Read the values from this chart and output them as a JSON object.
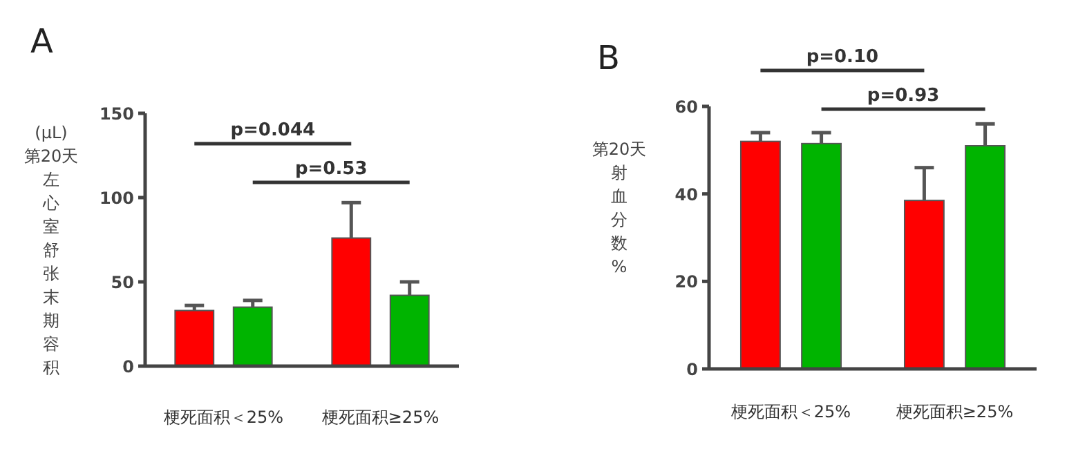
{
  "chart_data": [
    {
      "type": "bar",
      "title": "A",
      "ylabel": "(μL)第20天左心室舒张末期容积",
      "categories": [
        "梗死面积＜25%",
        "梗死面积≥25%"
      ],
      "series": [
        {
          "color": "#ff0000",
          "values": [
            33,
            76
          ],
          "errors": [
            [
              33,
              36
            ],
            [
              76,
              97
            ]
          ]
        },
        {
          "color": "#00b400",
          "values": [
            35,
            42
          ],
          "errors": [
            [
              35,
              39
            ],
            [
              42,
              50
            ]
          ]
        }
      ],
      "ylim": [
        0,
        150
      ],
      "yticks": [
        0,
        50,
        100,
        150
      ],
      "grid": false,
      "annotations": [
        "p=0.044",
        "p=0.53"
      ]
    },
    {
      "type": "bar",
      "title": "B",
      "ylabel": "第20天射血分数%",
      "categories": [
        "梗死面积＜25%",
        "梗死面积≥25%"
      ],
      "series": [
        {
          "color": "#ff0000",
          "values": [
            52,
            38.5
          ],
          "errors": [
            [
              52,
              54
            ],
            [
              38.5,
              46
            ]
          ]
        },
        {
          "color": "#00b400",
          "values": [
            51.5,
            51
          ],
          "errors": [
            [
              51.5,
              54
            ],
            [
              51,
              56
            ]
          ]
        }
      ],
      "ylim": [
        0,
        60
      ],
      "yticks": [
        0,
        20,
        40,
        60
      ],
      "grid": false,
      "annotations": [
        "p=0.10",
        "p=0.93"
      ]
    }
  ]
}
